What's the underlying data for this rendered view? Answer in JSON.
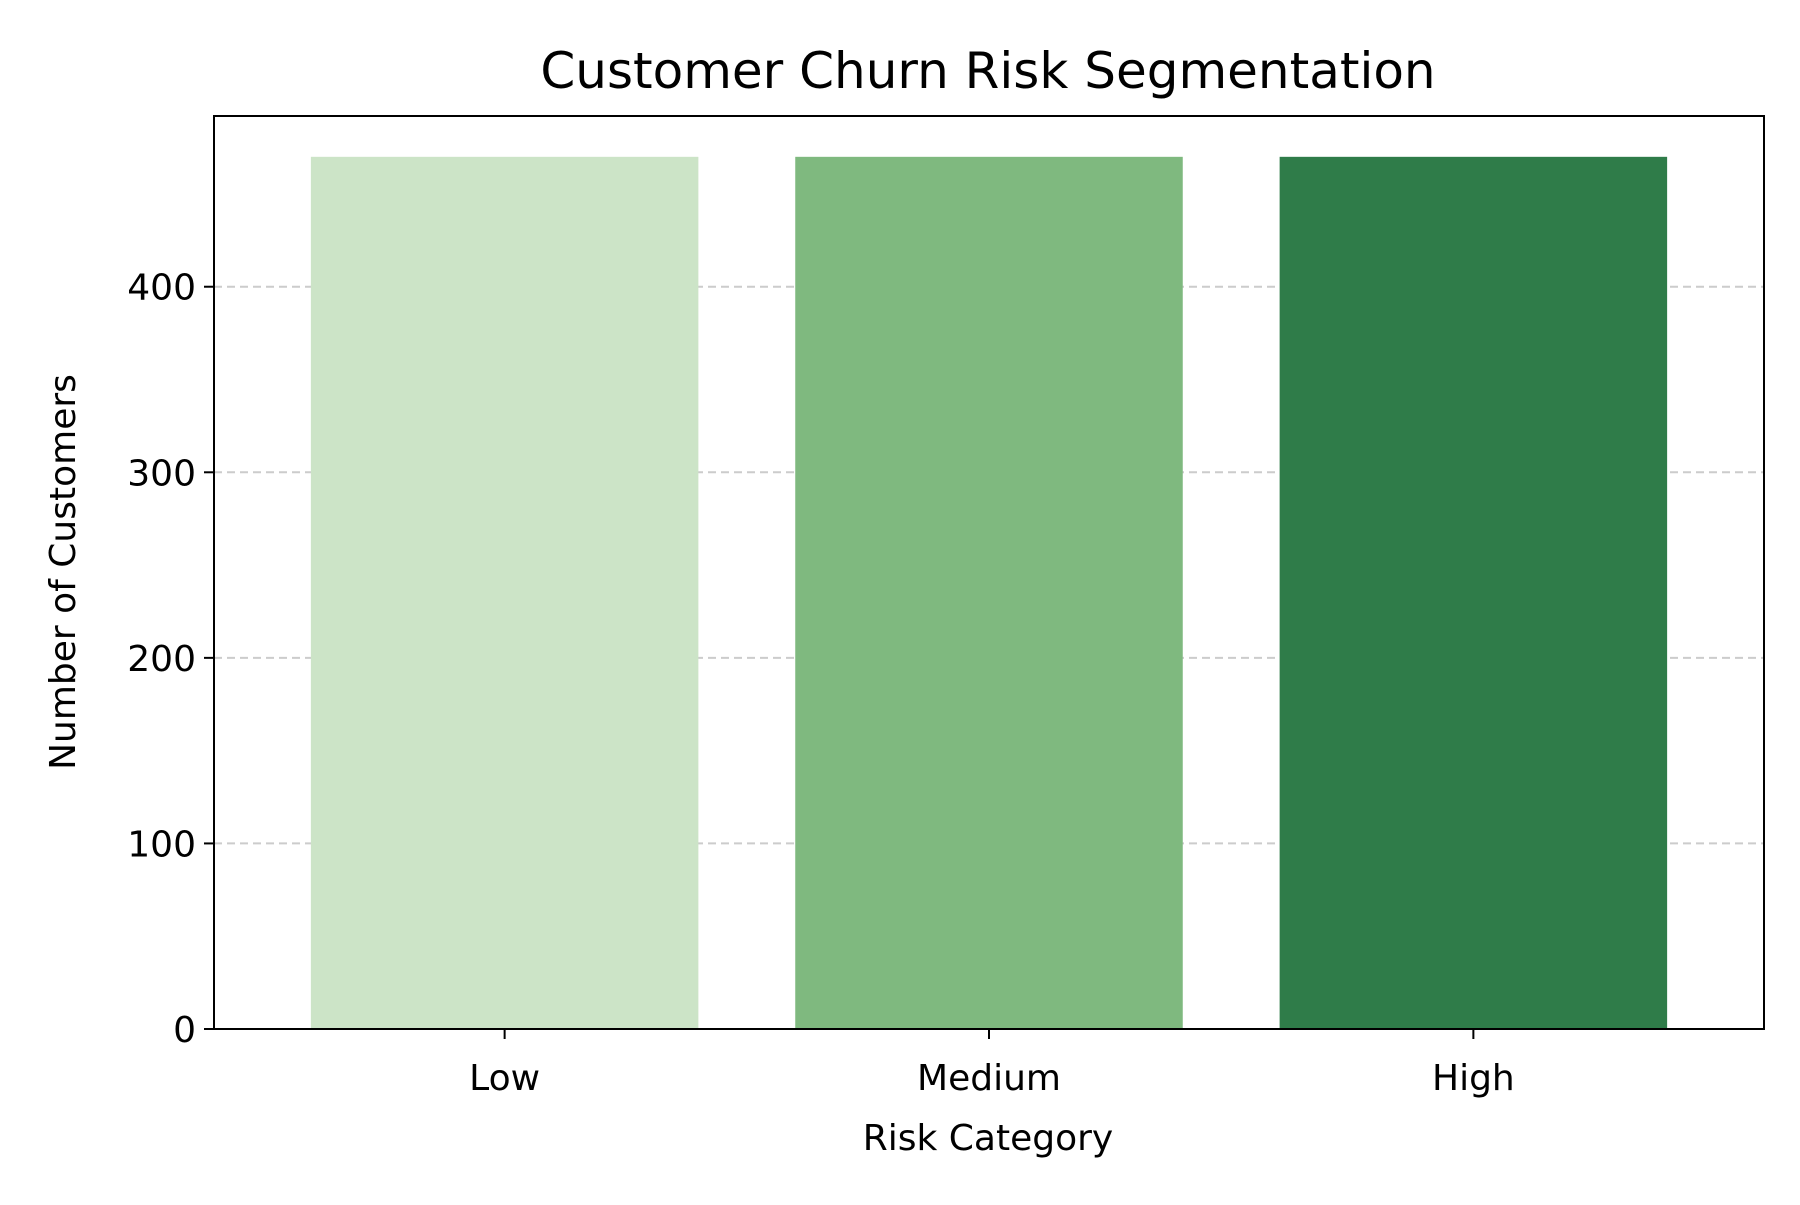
{
  "chart_data": {
    "type": "bar",
    "title": "Customer Churn Risk Segmentation",
    "xlabel": "Risk Category",
    "ylabel": "Number of Customers",
    "categories": [
      "Low",
      "Medium",
      "High"
    ],
    "values": [
      470,
      470,
      470
    ],
    "colors": [
      "#cce4c7",
      "#7fb97f",
      "#2f7c49"
    ],
    "ylim": [
      0,
      492
    ],
    "yticks": [
      0,
      100,
      200,
      300,
      400
    ],
    "grid": {
      "axis": "y",
      "style": "dashed",
      "color": "#cccccc"
    }
  }
}
